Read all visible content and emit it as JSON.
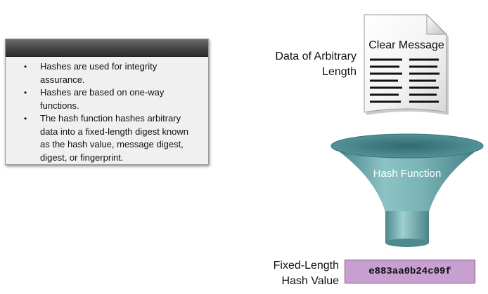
{
  "panel": {
    "bullets": [
      "Hashes are used for integrity assurance.",
      "Hashes are based on one-way functions.",
      "The hash function hashes arbitrary data into a fixed-length digest known as the hash value, message digest, digest, or fingerprint."
    ],
    "bullet_symbol": "•"
  },
  "diagram": {
    "input_label_line1": "Data of Arbitrary",
    "input_label_line2": "Length",
    "document_title": "Clear Message",
    "function_label": "Hash Function",
    "output_label_line1": "Fixed-Length",
    "output_label_line2": "Hash Value",
    "hash_value": "e883aa0b24c09f"
  },
  "colors": {
    "panel_header": "#3a3a3a",
    "panel_body": "#f0f0f0",
    "funnel": "#5f9fa3",
    "hash_box": "#c79fd0"
  },
  "icons": {
    "document": "document-icon",
    "funnel": "funnel-icon"
  }
}
